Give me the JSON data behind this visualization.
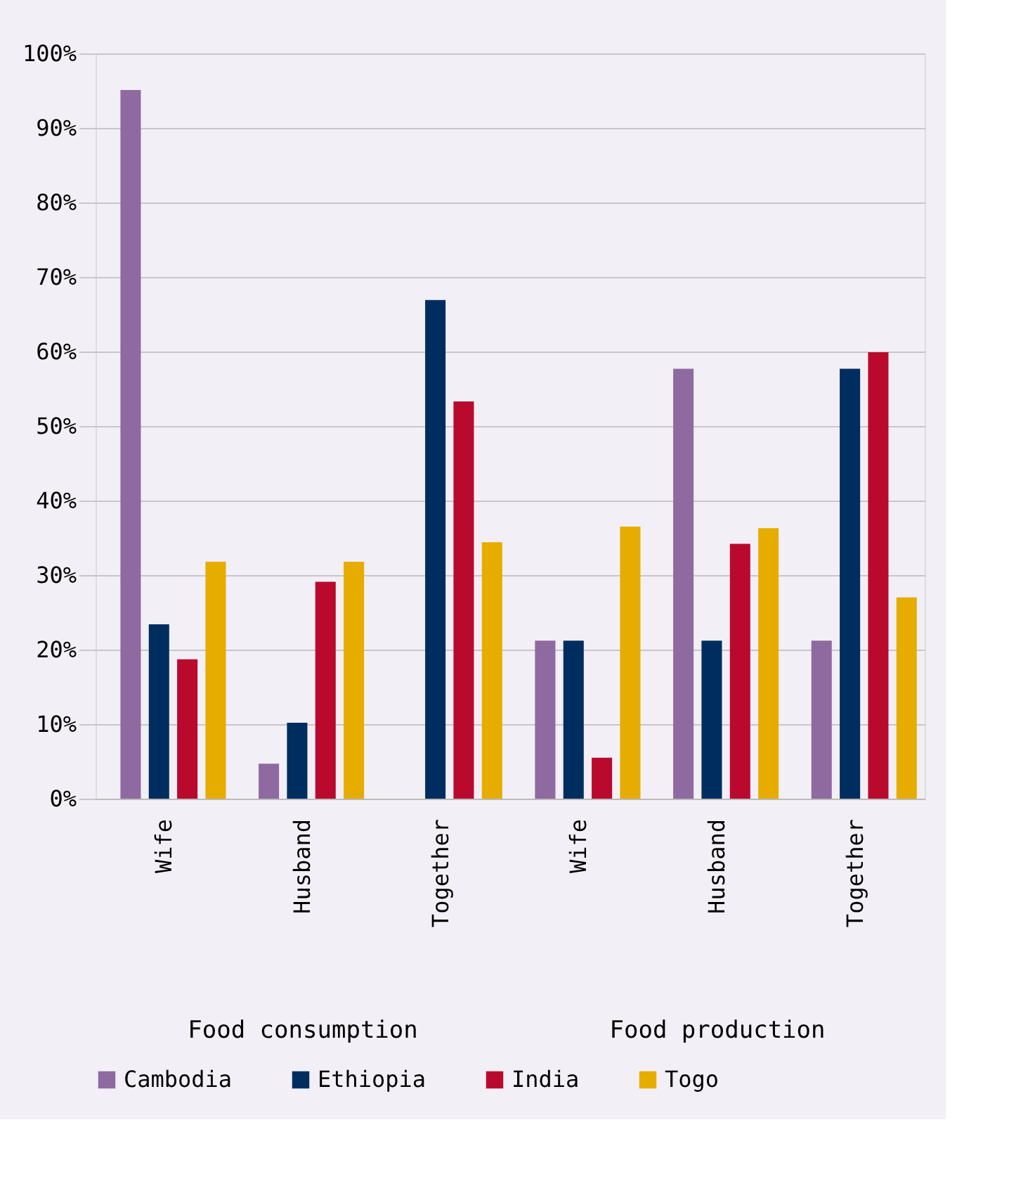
{
  "chart_data": {
    "type": "bar",
    "categories": [
      "Wife",
      "Husband",
      "Together",
      "Wife",
      "Husband",
      "Together"
    ],
    "series": [
      {
        "name": "Cambodia",
        "color": "#8f6aa0",
        "values": [
          95.1,
          4.7,
          0,
          21.2,
          57.7,
          21.2
        ]
      },
      {
        "name": "Ethiopia",
        "color": "#002d5f",
        "values": [
          23.4,
          10.2,
          66.9,
          21.2,
          21.2,
          57.7
        ]
      },
      {
        "name": "India",
        "color": "#b90a2e",
        "values": [
          18.7,
          29.1,
          53.3,
          5.5,
          34.2,
          59.9
        ]
      },
      {
        "name": "Togo",
        "color": "#e6ac00",
        "values": [
          31.8,
          31.8,
          34.4,
          36.5,
          36.3,
          27.0
        ]
      }
    ],
    "annotations": [
      "Food consumption",
      "Food production"
    ],
    "ylim": [
      0,
      100
    ],
    "yticks": [
      {
        "value": 0,
        "label": "0%"
      },
      {
        "value": 10,
        "label": "10%"
      },
      {
        "value": 20,
        "label": "20%"
      },
      {
        "value": 30,
        "label": "30%"
      },
      {
        "value": 40,
        "label": "40%"
      },
      {
        "value": 50,
        "label": "50%"
      },
      {
        "value": 60,
        "label": "60%"
      },
      {
        "value": 70,
        "label": "70%"
      },
      {
        "value": 80,
        "label": "80%"
      },
      {
        "value": 90,
        "label": "90%"
      },
      {
        "value": 100,
        "label": "100%"
      }
    ],
    "grid": "y",
    "legend": "bottom"
  }
}
